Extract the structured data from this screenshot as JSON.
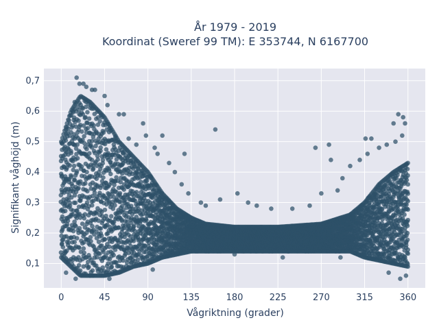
{
  "chart_data": {
    "type": "scatter",
    "title_line1": "År 1979 - 2019",
    "title_line2": "Koordinat (Sweref 99 TM): E 353744, N 6167700",
    "xlabel": "Vågriktning (grader)",
    "ylabel": "Signifikant våghöjd (m)",
    "xlim": [
      -18,
      378
    ],
    "ylim": [
      0.02,
      0.74
    ],
    "x_ticks": [
      0,
      45,
      90,
      135,
      180,
      225,
      270,
      315,
      360
    ],
    "x_tick_labels": [
      "0",
      "45",
      "90",
      "135",
      "180",
      "225",
      "270",
      "315",
      "360"
    ],
    "y_ticks": [
      0.1,
      0.2,
      0.3,
      0.4,
      0.5,
      0.6,
      0.7
    ],
    "y_tick_labels": [
      "0,1",
      "0,2",
      "0,3",
      "0,4",
      "0,5",
      "0,6",
      "0,7"
    ],
    "grid": true,
    "colors": {
      "marker": "#2e5068",
      "plot_bg": "#e5e6ef",
      "grid": "#ffffff",
      "text": "#2a3f5f"
    },
    "density_envelope": {
      "x": [
        0,
        10,
        20,
        30,
        45,
        60,
        75,
        90,
        105,
        120,
        135,
        150,
        180,
        225,
        270,
        300,
        315,
        330,
        345,
        360
      ],
      "y_low": [
        0.12,
        0.09,
        0.06,
        0.06,
        0.06,
        0.07,
        0.09,
        0.1,
        0.12,
        0.13,
        0.14,
        0.14,
        0.14,
        0.14,
        0.14,
        0.14,
        0.12,
        0.11,
        0.1,
        0.09
      ],
      "y_high": [
        0.5,
        0.6,
        0.65,
        0.63,
        0.58,
        0.5,
        0.45,
        0.4,
        0.33,
        0.28,
        0.25,
        0.23,
        0.22,
        0.22,
        0.23,
        0.26,
        0.3,
        0.36,
        0.4,
        0.43
      ]
    },
    "outliers": [
      {
        "x": 16,
        "y": 0.71
      },
      {
        "x": 19,
        "y": 0.69
      },
      {
        "x": 23,
        "y": 0.69
      },
      {
        "x": 26,
        "y": 0.68
      },
      {
        "x": 32,
        "y": 0.67
      },
      {
        "x": 35,
        "y": 0.67
      },
      {
        "x": 45,
        "y": 0.65
      },
      {
        "x": 48,
        "y": 0.62
      },
      {
        "x": 60,
        "y": 0.59
      },
      {
        "x": 65,
        "y": 0.59
      },
      {
        "x": 85,
        "y": 0.56
      },
      {
        "x": 88,
        "y": 0.52
      },
      {
        "x": 97,
        "y": 0.48
      },
      {
        "x": 105,
        "y": 0.52
      },
      {
        "x": 112,
        "y": 0.43
      },
      {
        "x": 128,
        "y": 0.46
      },
      {
        "x": 160,
        "y": 0.54
      },
      {
        "x": 145,
        "y": 0.3
      },
      {
        "x": 150,
        "y": 0.29
      },
      {
        "x": 165,
        "y": 0.31
      },
      {
        "x": 183,
        "y": 0.33
      },
      {
        "x": 194,
        "y": 0.3
      },
      {
        "x": 203,
        "y": 0.29
      },
      {
        "x": 218,
        "y": 0.28
      },
      {
        "x": 240,
        "y": 0.28
      },
      {
        "x": 258,
        "y": 0.29
      },
      {
        "x": 264,
        "y": 0.48
      },
      {
        "x": 278,
        "y": 0.49
      },
      {
        "x": 280,
        "y": 0.44
      },
      {
        "x": 270,
        "y": 0.33
      },
      {
        "x": 287,
        "y": 0.34
      },
      {
        "x": 292,
        "y": 0.38
      },
      {
        "x": 300,
        "y": 0.42
      },
      {
        "x": 310,
        "y": 0.44
      },
      {
        "x": 316,
        "y": 0.51
      },
      {
        "x": 322,
        "y": 0.51
      },
      {
        "x": 318,
        "y": 0.46
      },
      {
        "x": 330,
        "y": 0.48
      },
      {
        "x": 338,
        "y": 0.49
      },
      {
        "x": 345,
        "y": 0.56
      },
      {
        "x": 350,
        "y": 0.59
      },
      {
        "x": 355,
        "y": 0.58
      },
      {
        "x": 357,
        "y": 0.56
      },
      {
        "x": 354,
        "y": 0.52
      },
      {
        "x": 347,
        "y": 0.5
      },
      {
        "x": 5,
        "y": 0.54
      },
      {
        "x": 8,
        "y": 0.57
      },
      {
        "x": 12,
        "y": 0.6
      },
      {
        "x": 14,
        "y": 0.63
      },
      {
        "x": 70,
        "y": 0.51
      },
      {
        "x": 78,
        "y": 0.49
      },
      {
        "x": 100,
        "y": 0.46
      },
      {
        "x": 118,
        "y": 0.4
      },
      {
        "x": 125,
        "y": 0.36
      },
      {
        "x": 132,
        "y": 0.33
      },
      {
        "x": 5,
        "y": 0.07
      },
      {
        "x": 15,
        "y": 0.05
      },
      {
        "x": 50,
        "y": 0.05
      },
      {
        "x": 95,
        "y": 0.08
      },
      {
        "x": 180,
        "y": 0.13
      },
      {
        "x": 230,
        "y": 0.12
      },
      {
        "x": 290,
        "y": 0.12
      },
      {
        "x": 340,
        "y": 0.07
      },
      {
        "x": 352,
        "y": 0.05
      },
      {
        "x": 358,
        "y": 0.06
      }
    ]
  }
}
